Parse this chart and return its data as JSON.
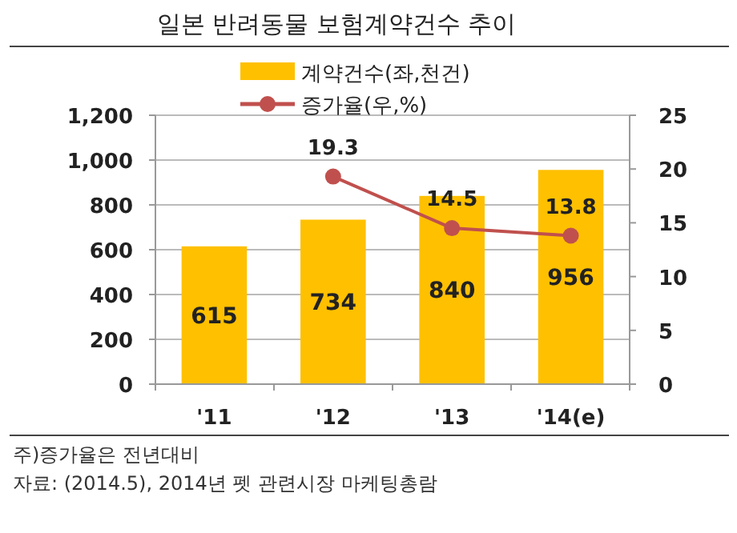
{
  "chart_data": {
    "type": "bar",
    "title": "일본 반려동물 보험계약건수 추이",
    "categories": [
      "'11",
      "'12",
      "'13",
      "'14(e)"
    ],
    "series": [
      {
        "name": "계약건수(좌,천건)",
        "color": "#ffc000",
        "values": [
          615,
          734,
          840,
          956
        ]
      },
      {
        "name": "증가율(우,%)",
        "type": "line",
        "axis": "y2",
        "color": "#c0504d",
        "values": [
          null,
          19.3,
          14.5,
          13.8
        ],
        "marker": "circle"
      }
    ],
    "ylim": [
      0,
      1200
    ],
    "yticks": [
      {
        "value": 0,
        "label": "0"
      },
      {
        "value": 200,
        "label": "200"
      },
      {
        "value": 400,
        "label": "400"
      },
      {
        "value": 600,
        "label": "600"
      },
      {
        "value": 800,
        "label": "800"
      },
      {
        "value": 1000,
        "label": "1,000"
      },
      {
        "value": 1200,
        "label": "1,200"
      }
    ],
    "y2lim": [
      0,
      25
    ],
    "y2ticks": [
      0,
      5,
      10,
      15,
      20,
      25
    ],
    "grid": "y",
    "legend": "top",
    "data_labels": true,
    "annotations": [
      "주)증가율은 전년대비",
      "자료: (2014.5), 2014년 펫 관련시장 마케팅총람"
    ]
  }
}
